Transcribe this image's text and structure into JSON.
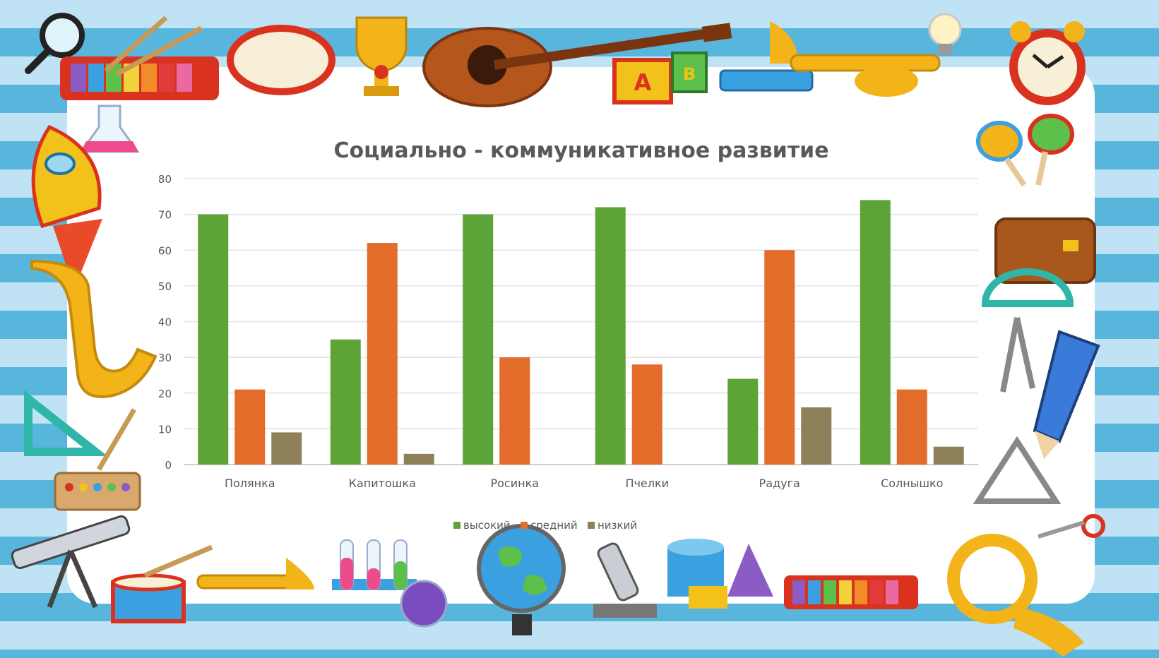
{
  "chart_data": {
    "type": "bar",
    "title": "Социально - коммуникативное развитие",
    "categories": [
      "Полянка",
      "Капитошка",
      "Росинка",
      "Пчелки",
      "Радуга",
      "Солнышко"
    ],
    "series": [
      {
        "name": "высокий",
        "color": "#5da338",
        "values": [
          70,
          35,
          70,
          72,
          24,
          74
        ]
      },
      {
        "name": "средний",
        "color": "#e46c2b",
        "values": [
          21,
          62,
          30,
          28,
          60,
          21
        ]
      },
      {
        "name": "низкий",
        "color": "#8e8058",
        "values": [
          9,
          3,
          0,
          0,
          16,
          5
        ]
      }
    ],
    "ylim": [
      0,
      80
    ],
    "yticks": [
      "0",
      "10",
      "20",
      "30",
      "40",
      "50",
      "60",
      "70",
      "80"
    ],
    "grid": true,
    "legend": "bottom"
  },
  "decorations": {
    "block_letters": [
      "A",
      "B"
    ]
  }
}
